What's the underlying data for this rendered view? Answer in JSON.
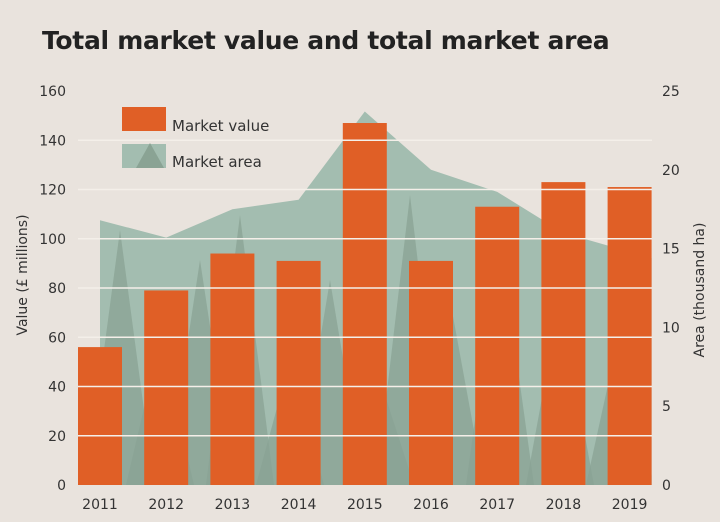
{
  "chart_data": {
    "type": "bar",
    "title": "Total market value and total market area",
    "categories": [
      "2011",
      "2012",
      "2013",
      "2014",
      "2015",
      "2016",
      "2017",
      "2018",
      "2019"
    ],
    "series": [
      {
        "name": "Market value",
        "kind": "bar",
        "axis": "left",
        "color": "#e05f26",
        "values": [
          56,
          79,
          94,
          91,
          147,
          91,
          113,
          123,
          121
        ]
      },
      {
        "name": "Market area",
        "kind": "area",
        "axis": "right",
        "color": "#a3bdb0",
        "values": [
          16.8,
          15.7,
          17.5,
          18.1,
          23.7,
          20.0,
          18.6,
          16.0,
          14.4
        ]
      }
    ],
    "ylabel": "Value (£ millions)",
    "y2label": "Area (thousand ha)",
    "ylim": [
      0,
      160
    ],
    "y2lim": [
      0,
      25
    ],
    "yticks": [
      0,
      20,
      40,
      60,
      80,
      100,
      120,
      140,
      160
    ],
    "y2ticks": [
      0,
      5,
      10,
      15,
      20,
      25
    ],
    "grid": true,
    "legend": "top-left"
  }
}
